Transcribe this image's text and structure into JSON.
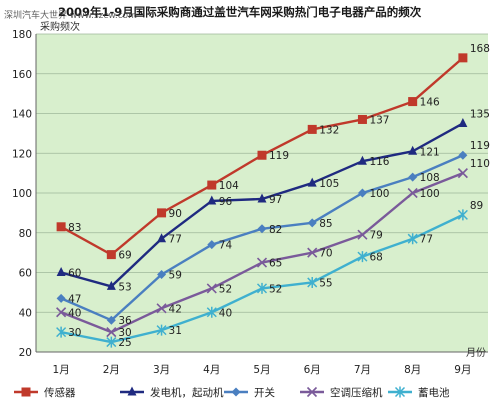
{
  "chart_data": {
    "type": "line",
    "title": "2009年1-9月国际采购商通过盖世汽车网采购热门电子电器产品的频次",
    "watermark": "深圳汽车大世界 www.szcw.com",
    "ylabel": "采购频次",
    "xlabel": "月份",
    "categories": [
      "1月",
      "2月",
      "3月",
      "4月",
      "5月",
      "6月",
      "7月",
      "8月",
      "9月"
    ],
    "ylim": [
      20,
      180
    ],
    "yticks": [
      20,
      40,
      60,
      80,
      100,
      120,
      140,
      160,
      180
    ],
    "grid": true,
    "legend_position": "bottom",
    "series": [
      {
        "name": "传感器",
        "color": "#c0392b",
        "marker": "square",
        "values": [
          83,
          69,
          90,
          104,
          119,
          132,
          137,
          146,
          168
        ]
      },
      {
        "name": "发电机，起动机",
        "color": "#1f2a80",
        "marker": "triangle",
        "values": [
          60,
          53,
          77,
          96,
          97,
          105,
          116,
          121,
          135
        ]
      },
      {
        "name": "开关",
        "color": "#4a7fc0",
        "marker": "diamond",
        "values": [
          47,
          36,
          59,
          74,
          82,
          85,
          100,
          108,
          119
        ]
      },
      {
        "name": "空调压缩机",
        "color": "#7a5a9a",
        "marker": "x",
        "values": [
          40,
          30,
          42,
          52,
          65,
          70,
          79,
          100,
          110
        ]
      },
      {
        "name": "蓄电池",
        "color": "#3fb0cf",
        "marker": "star",
        "values": [
          30,
          25,
          31,
          40,
          52,
          55,
          68,
          77,
          89
        ]
      }
    ]
  }
}
